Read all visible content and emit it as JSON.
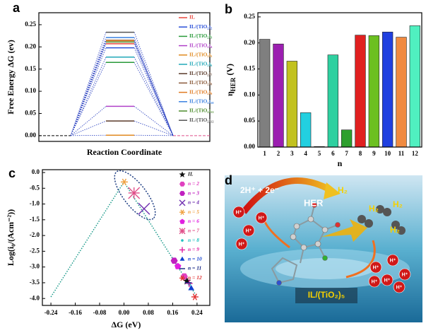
{
  "chart_data": [
    {
      "panel": "a",
      "type": "energy_diagram",
      "ylabel": "Free Energy ΔG (ev)",
      "xlabel": "Reaction Coordinate",
      "ylim": [
        -0.013,
        0.277
      ],
      "yticks": [
        {
          "value": 0,
          "label": "0.00"
        },
        0.05,
        {
          "value": 0.1,
          "label": "0.10"
        },
        0.15,
        {
          "value": 0.2,
          "label": "0.20"
        },
        0.25
      ],
      "series": [
        {
          "name": "IL",
          "color": "#e8453c",
          "values": [
            0.207
          ]
        },
        {
          "name": "IL/(TiO₂)₂",
          "color": "#2a4fd8",
          "values": [
            0.198
          ]
        },
        {
          "name": "IL/(TiO₂)₃",
          "color": "#2a9a3a",
          "values": [
            0.165
          ]
        },
        {
          "name": "IL/(TiO₂)₄",
          "color": "#b040c8",
          "values": [
            0.066
          ]
        },
        {
          "name": "IL/(TiO₂)₅",
          "color": "#e08a20",
          "values": [
            0.001
          ]
        },
        {
          "name": "IL/(TiO₂)₆",
          "color": "#20a8b8",
          "values": [
            0.177
          ]
        },
        {
          "name": "IL/(TiO₂)₇",
          "color": "#5a3a2a",
          "values": [
            0.033
          ]
        },
        {
          "name": "IL/(TiO₂)₈",
          "color": "#8a5a3a",
          "values": [
            0.215
          ]
        },
        {
          "name": "IL/(TiO₂)₉",
          "color": "#e07a20",
          "values": [
            0.214
          ]
        },
        {
          "name": "IL/(TiO₂)₁₀",
          "color": "#3a80e0",
          "values": [
            0.221
          ]
        },
        {
          "name": "IL/(TiO₂)₁₁",
          "color": "#4a8a2a",
          "values": [
            0.211
          ]
        },
        {
          "name": "IL/(TiO₂)₁₂",
          "color": "#555555",
          "values": [
            0.233
          ]
        }
      ]
    },
    {
      "panel": "b",
      "type": "bar",
      "ylabel": [
        "η",
        "HER",
        " (V)"
      ],
      "xlabel": "n",
      "categories": [
        "1",
        "2",
        "3",
        "4",
        "5",
        "6",
        "7",
        "8",
        "9",
        "10",
        "11",
        "12"
      ],
      "values": [
        0.207,
        0.198,
        0.165,
        0.066,
        0.001,
        0.177,
        0.033,
        0.215,
        0.214,
        0.221,
        0.211,
        0.233
      ],
      "colors": [
        "#7f7f7f",
        "#9b1fb0",
        "#c2c21e",
        "#22d0e0",
        "#aaaaaa",
        "#2fd0a0",
        "#2ea02e",
        "#e02020",
        "#6cc020",
        "#2040e0",
        "#f08a40",
        "#50f0c0"
      ],
      "ylim": [
        0,
        0.258
      ],
      "yticks": [
        {
          "value": 0,
          "label": "0.00"
        },
        0.05,
        {
          "value": 0.1,
          "label": "0.10"
        },
        0.15,
        {
          "value": 0.2,
          "label": "0.20"
        },
        0.25
      ]
    },
    {
      "panel": "c",
      "type": "scatter",
      "ylabel": "Log(i₀/(Acm⁻²))",
      "xlabel": "ΔG (eV)",
      "xlim": [
        -0.268,
        0.282
      ],
      "ylim": [
        -4.22,
        0.09
      ],
      "xticks": [
        -0.24,
        -0.16,
        -0.08,
        {
          "value": 0,
          "label": "0.00"
        },
        0.08,
        0.16,
        0.24
      ],
      "yticks": [
        {
          "value": 0,
          "label": "0.0"
        },
        -0.5,
        {
          "value": -1,
          "label": "-1.0"
        },
        -1.5,
        {
          "value": -2,
          "label": "-2.0"
        },
        -2.5,
        {
          "value": -3,
          "label": "-3.0"
        },
        -3.5,
        {
          "value": -4,
          "label": "-4.0"
        }
      ],
      "volcano": {
        "color": "#1a9a8a",
        "x": [
          -0.24,
          0,
          0.24
        ],
        "y": [
          -3.95,
          -0.3,
          -3.95
        ]
      },
      "series": [
        {
          "name": "IL",
          "color": "#111111",
          "marker": "star",
          "x": [
            0.207
          ],
          "values": [
            -3.45
          ]
        },
        {
          "name": "n = 2",
          "color": "#e040c0",
          "marker": "hexagon",
          "x": [
            0.198
          ],
          "values": [
            -3.3
          ]
        },
        {
          "name": "n = 3",
          "color": "#c020c0",
          "marker": "hexagon",
          "x": [
            0.165
          ],
          "values": [
            -2.8
          ]
        },
        {
          "name": "n = 4",
          "color": "#7030b0",
          "marker": "x",
          "x": [
            0.066
          ],
          "values": [
            -1.15
          ]
        },
        {
          "name": "n = 5",
          "color": "#f0a040",
          "marker": "asterisk",
          "x": [
            0.001
          ],
          "values": [
            -0.3
          ]
        },
        {
          "name": "n = 6",
          "color": "#e020e0",
          "marker": "pentagon",
          "x": [
            0.177
          ],
          "values": [
            -2.98
          ]
        },
        {
          "name": "n = 7",
          "color": "#e0508a",
          "marker": "snowflake",
          "x": [
            0.033
          ],
          "values": [
            -0.65
          ]
        },
        {
          "name": "n = 8",
          "color": "#20c0c0",
          "marker": "dot",
          "x": [
            0.215
          ],
          "values": [
            -3.55
          ]
        },
        {
          "name": "n = 9",
          "color": "#e020a0",
          "marker": "plus",
          "x": [
            0.214
          ],
          "values": [
            -3.52
          ]
        },
        {
          "name": "n = 10",
          "color": "#1040d0",
          "marker": "triangle",
          "x": [
            0.221
          ],
          "values": [
            -3.68
          ]
        },
        {
          "name": "n = 11",
          "color": "#102080",
          "marker": "hline",
          "x": [
            0.211
          ],
          "values": [
            -3.5
          ]
        },
        {
          "name": "n = 12",
          "color": "#e03030",
          "marker": "asterisk",
          "x": [
            0.233
          ],
          "values": [
            -3.95
          ]
        }
      ]
    }
  ],
  "illustration": {
    "panel": "d",
    "reaction": "2H⁺ + 2e⁻",
    "process": "HER",
    "products": [
      "H₂",
      "H₂",
      "H₂",
      "H₂"
    ],
    "ion": "H⁺",
    "catalyst": "IL/(TiO₂)₅"
  }
}
